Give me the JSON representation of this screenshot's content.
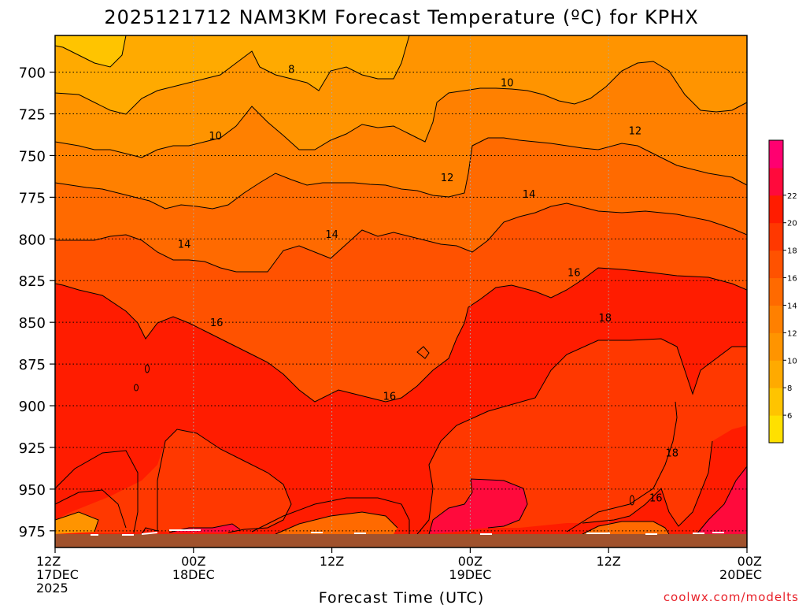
{
  "chart_data": {
    "type": "heatmap",
    "title": "2025121712 NAM3KM Forecast Temperature (ºC) for KPHX",
    "xlabel": "Forecast Time (UTC)",
    "credit": "coolwx.com/modelts",
    "x_ticks": [
      {
        "hour": 0,
        "lines": [
          "12Z",
          "17DEC",
          "2025"
        ]
      },
      {
        "hour": 12,
        "lines": [
          "00Z",
          "18DEC"
        ]
      },
      {
        "hour": 24,
        "lines": [
          "12Z"
        ]
      },
      {
        "hour": 36,
        "lines": [
          "00Z",
          "19DEC"
        ]
      },
      {
        "hour": 48,
        "lines": [
          "12Z"
        ]
      },
      {
        "hour": 60,
        "lines": [
          "00Z",
          "20DEC"
        ]
      }
    ],
    "xlim_hours": [
      0,
      60
    ],
    "y_ticks": [
      "700",
      "725",
      "750",
      "775",
      "800",
      "825",
      "850",
      "875",
      "900",
      "925",
      "950",
      "975"
    ],
    "y_tick_values": [
      700,
      725,
      750,
      775,
      800,
      825,
      850,
      875,
      900,
      925,
      950,
      975
    ],
    "ylim_hpa": [
      678,
      985
    ],
    "ground_hpa": 975,
    "y_axis_inverted": true,
    "colorbar": {
      "levels": [
        4,
        6,
        8,
        10,
        12,
        14,
        16,
        18,
        20,
        22,
        24
      ],
      "labels": [
        "6",
        "8",
        "10",
        "12",
        "14",
        "16",
        "18",
        "20",
        "22"
      ],
      "colors": [
        "#ffe000",
        "#ffc400",
        "#ffaa00",
        "#ff9400",
        "#ff8000",
        "#ff6a00",
        "#ff5200",
        "#ff3800",
        "#ff1c00",
        "#ff0a3c",
        "#ff0070"
      ]
    },
    "isotherm_labels": [
      {
        "text": "8",
        "hour": 20.5,
        "hpa": 698
      },
      {
        "text": "10",
        "hour": 39.2,
        "hpa": 706
      },
      {
        "text": "10",
        "hour": 13.9,
        "hpa": 738
      },
      {
        "text": "12",
        "hour": 50.3,
        "hpa": 735
      },
      {
        "text": "12",
        "hour": 34.0,
        "hpa": 763
      },
      {
        "text": "14",
        "hour": 41.1,
        "hpa": 773
      },
      {
        "text": "14",
        "hour": 24.0,
        "hpa": 797
      },
      {
        "text": "14",
        "hour": 11.2,
        "hpa": 803
      },
      {
        "text": "16",
        "hour": 45.0,
        "hpa": 820
      },
      {
        "text": "16",
        "hour": 14.0,
        "hpa": 850
      },
      {
        "text": "18",
        "hour": 47.7,
        "hpa": 847
      },
      {
        "text": "16",
        "hour": 29.0,
        "hpa": 894
      },
      {
        "text": "18",
        "hour": 53.5,
        "hpa": 928
      },
      {
        "text": "16",
        "hour": 52.1,
        "hpa": 955
      }
    ]
  }
}
